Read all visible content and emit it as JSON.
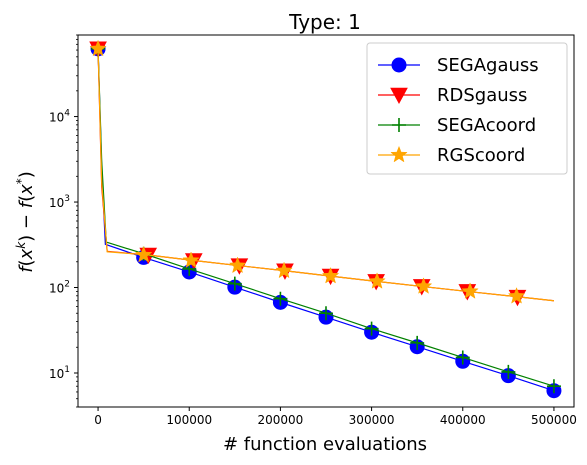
{
  "chart_data": {
    "type": "line",
    "title": "Type: 1",
    "xlabel": "# function evaluations",
    "ylabel": "f(x^k) − f(x^*)",
    "yscale": "log",
    "xlim": [
      -22000,
      522000
    ],
    "ylim": [
      4.0,
      90000
    ],
    "x_ticks": [
      {
        "value": 0,
        "label": "0"
      },
      {
        "value": 100000,
        "label": "100000"
      },
      {
        "value": 200000,
        "label": "200000"
      },
      {
        "value": 300000,
        "label": "300000"
      },
      {
        "value": 400000,
        "label": "400000"
      },
      {
        "value": 500000,
        "label": "500000"
      }
    ],
    "y_ticks": [
      {
        "value": 10,
        "exp": "1"
      },
      {
        "value": 100,
        "exp": "2"
      },
      {
        "value": 1000,
        "exp": "3"
      },
      {
        "value": 10000,
        "exp": "4"
      }
    ],
    "legend_position": "top-right",
    "grid": false,
    "series": [
      {
        "name": "SEGAgauss",
        "color": "#0000ff",
        "marker": "circle",
        "line": [
          [
            0,
            62000
          ],
          [
            4000,
            2500
          ],
          [
            8000,
            320
          ],
          [
            50000,
            225
          ],
          [
            100000,
            152
          ],
          [
            150000,
            101
          ],
          [
            200000,
            67
          ],
          [
            250000,
            45
          ],
          [
            300000,
            30
          ],
          [
            350000,
            20.3
          ],
          [
            400000,
            13.7
          ],
          [
            450000,
            9.3
          ],
          [
            500000,
            6.2
          ]
        ],
        "markers": [
          [
            0,
            62000
          ],
          [
            50000,
            225
          ],
          [
            100000,
            152
          ],
          [
            150000,
            101
          ],
          [
            200000,
            67
          ],
          [
            250000,
            45
          ],
          [
            300000,
            30
          ],
          [
            350000,
            20.3
          ],
          [
            400000,
            13.7
          ],
          [
            450000,
            9.3
          ],
          [
            500000,
            6.2
          ]
        ]
      },
      {
        "name": "RDSgauss",
        "color": "#ff0000",
        "marker": "triangle-down",
        "line": [
          [
            0,
            62000
          ],
          [
            4000,
            1500
          ],
          [
            10000,
            265
          ],
          [
            55000,
            240
          ],
          [
            105000,
            207
          ],
          [
            155000,
            180
          ],
          [
            205000,
            157
          ],
          [
            255000,
            136
          ],
          [
            305000,
            118
          ],
          [
            355000,
            103
          ],
          [
            405000,
            90
          ],
          [
            455000,
            79
          ],
          [
            500000,
            70
          ]
        ],
        "markers": [
          [
            0,
            62000
          ],
          [
            55000,
            240
          ],
          [
            105000,
            207
          ],
          [
            155000,
            180
          ],
          [
            205000,
            157
          ],
          [
            255000,
            136
          ],
          [
            305000,
            118
          ],
          [
            355000,
            103
          ],
          [
            405000,
            90
          ],
          [
            460000,
            77
          ]
        ]
      },
      {
        "name": "SEGAcoord",
        "color": "#008000",
        "marker": "plus",
        "line": [
          [
            0,
            62000
          ],
          [
            4000,
            3000
          ],
          [
            9000,
            340
          ],
          [
            52000,
            245
          ],
          [
            100000,
            165
          ],
          [
            150000,
            111
          ],
          [
            200000,
            74
          ],
          [
            250000,
            50
          ],
          [
            300000,
            33
          ],
          [
            350000,
            22.5
          ],
          [
            400000,
            15.2
          ],
          [
            450000,
            10.3
          ],
          [
            500000,
            7.0
          ]
        ],
        "markers": [
          [
            0,
            62000
          ],
          [
            50000,
            248
          ],
          [
            100000,
            165
          ],
          [
            150000,
            111
          ],
          [
            200000,
            74
          ],
          [
            250000,
            50
          ],
          [
            300000,
            33
          ],
          [
            350000,
            22.5
          ],
          [
            400000,
            15.2
          ],
          [
            450000,
            10.3
          ],
          [
            500000,
            7.0
          ]
        ]
      },
      {
        "name": "RGScoord",
        "color": "#ffa500",
        "marker": "star",
        "line": [
          [
            0,
            62000
          ],
          [
            4000,
            1700
          ],
          [
            10000,
            262
          ],
          [
            55000,
            240
          ],
          [
            105000,
            207
          ],
          [
            155000,
            180
          ],
          [
            205000,
            157
          ],
          [
            255000,
            136
          ],
          [
            305000,
            118
          ],
          [
            355000,
            103
          ],
          [
            405000,
            90
          ],
          [
            455000,
            79
          ],
          [
            500000,
            70
          ]
        ],
        "markers": [
          [
            0,
            62000
          ],
          [
            50000,
            240
          ],
          [
            102000,
            207
          ],
          [
            153000,
            180
          ],
          [
            204000,
            157
          ],
          [
            255000,
            136
          ],
          [
            306000,
            118
          ],
          [
            357000,
            103
          ],
          [
            408000,
            90
          ],
          [
            459000,
            79
          ]
        ]
      }
    ]
  }
}
